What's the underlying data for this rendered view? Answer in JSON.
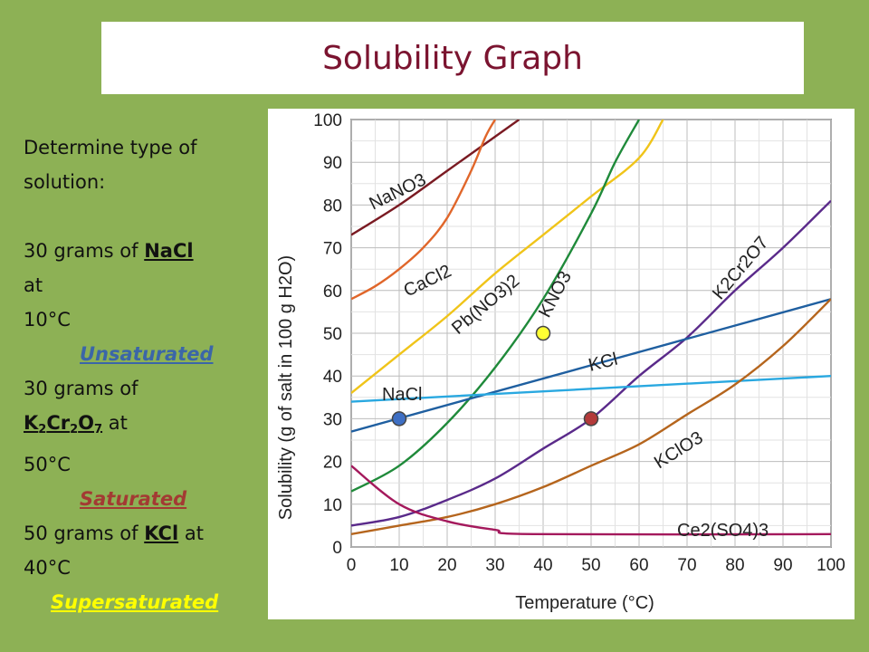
{
  "title": "Solubility Graph",
  "left": {
    "heading": "Determine type of solution:",
    "q1": {
      "pre": "30 grams of ",
      "salt": "NaCl",
      "post1": "at",
      "temp": "10°C",
      "answer": "Unsaturated"
    },
    "q2": {
      "pre": "30 grams of",
      "salt_parts": [
        "K",
        "2",
        "Cr",
        "2",
        "O",
        "7"
      ],
      "post": " at",
      "temp": "50°C",
      "answer": "Saturated"
    },
    "q3": {
      "pre": "50 grams of ",
      "salt": "KCl",
      "post": " at",
      "temp": "40°C",
      "answer": "Supersaturated"
    }
  },
  "chart_data": {
    "type": "line",
    "xlabel": "Temperature (°C)",
    "ylabel": "Solubility (g of salt in 100 g H2O)",
    "xlim": [
      0,
      100
    ],
    "ylim": [
      0,
      100
    ],
    "xticks": [
      0,
      10,
      20,
      30,
      40,
      50,
      60,
      70,
      80,
      90,
      100
    ],
    "yticks": [
      0,
      10,
      20,
      30,
      40,
      50,
      60,
      70,
      80,
      90,
      100
    ],
    "grid": true,
    "series": [
      {
        "name": "NaNO3",
        "color": "#7a1a22",
        "x": [
          0,
          10,
          20,
          30,
          35
        ],
        "y": [
          73,
          80,
          88,
          96,
          100
        ]
      },
      {
        "name": "CaCl2",
        "color": "#e0662a",
        "x": [
          0,
          5,
          10,
          15,
          20,
          25,
          28,
          30
        ],
        "y": [
          58,
          61,
          65,
          70,
          77,
          88,
          96,
          100
        ]
      },
      {
        "name": "Pb(NO3)2",
        "color": "#f0c419",
        "x": [
          0,
          10,
          20,
          30,
          40,
          50,
          60,
          65
        ],
        "y": [
          36,
          45,
          54,
          64,
          73,
          82,
          91,
          100
        ]
      },
      {
        "name": "KNO3",
        "color": "#1f8a3a",
        "x": [
          0,
          10,
          20,
          30,
          40,
          50,
          55,
          60
        ],
        "y": [
          13,
          19,
          29,
          42,
          58,
          78,
          90,
          100
        ]
      },
      {
        "name": "K2Cr2O7",
        "color": "#5a2a8a",
        "x": [
          0,
          10,
          20,
          30,
          40,
          50,
          60,
          70,
          80,
          90,
          100
        ],
        "y": [
          5,
          7,
          11,
          16,
          23,
          30,
          40,
          49,
          60,
          70,
          81
        ]
      },
      {
        "name": "KCl",
        "color": "#1f5fa0",
        "x": [
          0,
          100
        ],
        "y": [
          27,
          58
        ]
      },
      {
        "name": "NaCl",
        "color": "#29a8e0",
        "x": [
          0,
          100
        ],
        "y": [
          34,
          40
        ]
      },
      {
        "name": "KClO3",
        "color": "#b5651d",
        "x": [
          0,
          10,
          20,
          30,
          40,
          50,
          60,
          70,
          80,
          90,
          100
        ],
        "y": [
          3,
          5,
          7,
          10,
          14,
          19,
          24,
          31,
          38,
          47,
          58
        ]
      },
      {
        "name": "Ce2(SO4)3",
        "color": "#a4195c",
        "x": [
          0,
          10,
          20,
          30,
          38,
          100
        ],
        "y": [
          19,
          10,
          6,
          4,
          3,
          3
        ]
      }
    ],
    "points": [
      {
        "x": 10,
        "y": 30,
        "color": "#3e6fc4"
      },
      {
        "x": 50,
        "y": 30,
        "color": "#b33a3a"
      },
      {
        "x": 40,
        "y": 50,
        "color": "#ffff33"
      }
    ]
  }
}
